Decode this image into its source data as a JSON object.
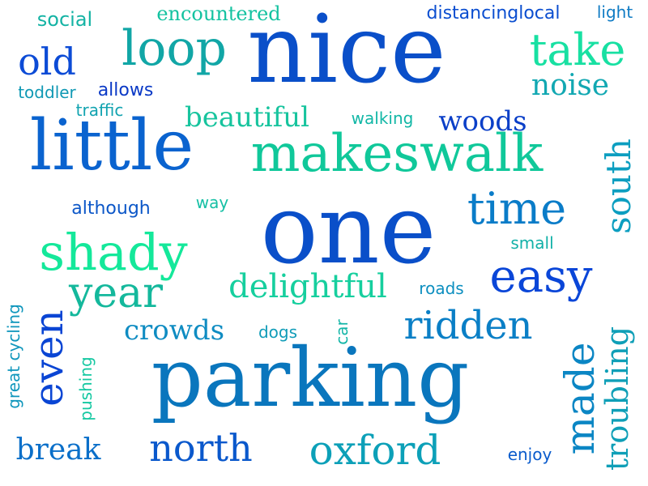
{
  "cloud": {
    "words": [
      {
        "text": "nice",
        "color": "#0a4fc9"
      },
      {
        "text": "one",
        "color": "#0a4fc9"
      },
      {
        "text": "parking",
        "color": "#0a76bd"
      },
      {
        "text": "little",
        "color": "#0a63cf"
      },
      {
        "text": "makeswalk",
        "color": "#10c89a"
      },
      {
        "text": "shady",
        "color": "#14e89a"
      },
      {
        "text": "loop",
        "color": "#11a6a6"
      },
      {
        "text": "take",
        "color": "#18e0a2"
      },
      {
        "text": "old",
        "color": "#0c4bd6"
      },
      {
        "text": "noise",
        "color": "#12a8b2"
      },
      {
        "text": "time",
        "color": "#0a7cc8"
      },
      {
        "text": "easy",
        "color": "#0a46d8"
      },
      {
        "text": "year",
        "color": "#14b89c"
      },
      {
        "text": "delightful",
        "color": "#16cf9e"
      },
      {
        "text": "crowds",
        "color": "#0f8cc2"
      },
      {
        "text": "ridden",
        "color": "#0a7fc6"
      },
      {
        "text": "even",
        "color": "#0a45d4"
      },
      {
        "text": "made",
        "color": "#0b86c4"
      },
      {
        "text": "troubling",
        "color": "#0f9fb7"
      },
      {
        "text": "south",
        "color": "#0c9ec0"
      },
      {
        "text": "north",
        "color": "#0a58cc"
      },
      {
        "text": "oxford",
        "color": "#0ca0b8"
      },
      {
        "text": "break",
        "color": "#0a6fc9"
      },
      {
        "text": "beautiful",
        "color": "#17c49e"
      },
      {
        "text": "woods",
        "color": "#0a3fc8"
      },
      {
        "text": "social",
        "color": "#14b3a4"
      },
      {
        "text": "encountered",
        "color": "#13c2a0"
      },
      {
        "text": "distancinglocal",
        "color": "#0b4ed0"
      },
      {
        "text": "light",
        "color": "#0f7bc4"
      },
      {
        "text": "toddler",
        "color": "#1099b4"
      },
      {
        "text": "allows",
        "color": "#0a39c6"
      },
      {
        "text": "traffic",
        "color": "#11a3b0"
      },
      {
        "text": "walking",
        "color": "#12b7a6"
      },
      {
        "text": "way",
        "color": "#16c0a5"
      },
      {
        "text": "although",
        "color": "#0c57c8"
      },
      {
        "text": "small",
        "color": "#13b1a8"
      },
      {
        "text": "roads",
        "color": "#0d8fc0"
      },
      {
        "text": "dogs",
        "color": "#109cb8"
      },
      {
        "text": "car",
        "color": "#15b6a8"
      },
      {
        "text": "great cycling",
        "color": "#0f96bc"
      },
      {
        "text": "pushing",
        "color": "#15c8a2"
      },
      {
        "text": "enjoy",
        "color": "#0a5bcc"
      }
    ]
  }
}
